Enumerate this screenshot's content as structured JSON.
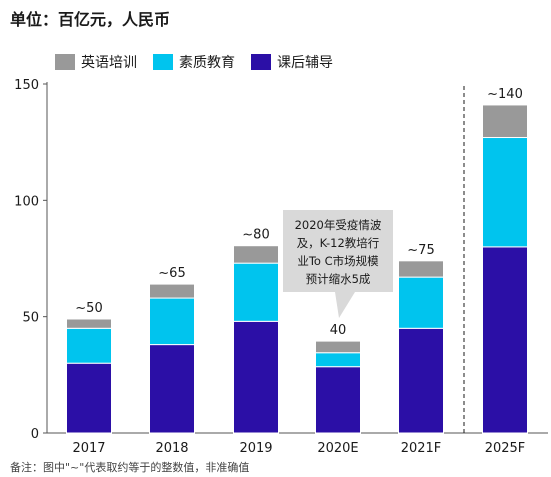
{
  "header": {
    "unit_title": "单位：百亿元，人民币"
  },
  "footnote": "备注：图中\"~\"代表取约等于的整数值，非准确值",
  "colors": {
    "english": "#999999",
    "quality": "#00c4ee",
    "tutoring": "#2b0fa6"
  },
  "callout": {
    "lines": [
      "2020年受疫情波",
      "及，K-12教培行",
      "业To C市场规模",
      "预计缩水5成"
    ]
  },
  "chart_data": {
    "type": "bar",
    "stacked": true,
    "categories": [
      "2017",
      "2018",
      "2019",
      "2020E",
      "2021F",
      "2025F"
    ],
    "series": [
      {
        "name": "课后辅导",
        "color": "#2b0fa6",
        "values": [
          30,
          38,
          48,
          28.5,
          45,
          80
        ]
      },
      {
        "name": "素质教育",
        "color": "#00c4ee",
        "values": [
          15,
          20,
          25,
          6,
          22,
          47
        ]
      },
      {
        "name": "英语培训",
        "color": "#999999",
        "values": [
          4,
          6,
          7.5,
          5,
          7,
          14
        ]
      }
    ],
    "legend": [
      "英语培训",
      "素质教育",
      "课后辅导"
    ],
    "total_labels": [
      "~50",
      "~65",
      "~80",
      "40",
      "~75",
      "~140"
    ],
    "yticks": [
      0,
      50,
      100,
      150
    ],
    "ylim": [
      0,
      150
    ],
    "legend_position": "top-left",
    "grid": false,
    "divider_before": "2025F"
  }
}
